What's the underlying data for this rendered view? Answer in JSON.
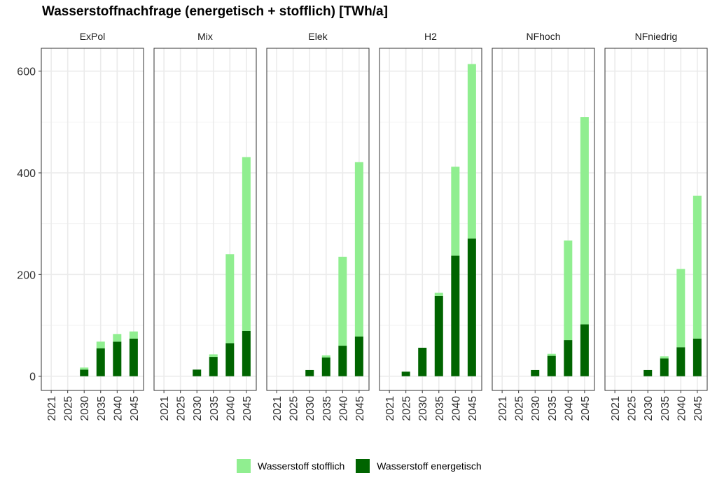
{
  "chart_data": {
    "type": "bar",
    "stacked": true,
    "title": "Wasserstoffnachfrage (energetisch + stofflich) [TWh/a]",
    "xlabel": "",
    "ylabel": "",
    "ylim": [
      -28,
      645
    ],
    "yticks": [
      0,
      200,
      400,
      600
    ],
    "categories": [
      "2021",
      "2025",
      "2030",
      "2035",
      "2040",
      "2045"
    ],
    "grid": true,
    "legend_position": "bottom",
    "panels": [
      {
        "name": "ExPol",
        "series": [
          {
            "name": "Wasserstoff energetisch",
            "values": [
              0,
              0,
              13,
              55,
              68,
              74
            ]
          },
          {
            "name": "Wasserstoff stofflich",
            "values": [
              0,
              0,
              4,
              13,
              15,
              14
            ]
          }
        ]
      },
      {
        "name": "Mix",
        "series": [
          {
            "name": "Wasserstoff energetisch",
            "values": [
              0,
              0,
              13,
              38,
              65,
              89
            ]
          },
          {
            "name": "Wasserstoff stofflich",
            "values": [
              0,
              0,
              0,
              5,
              175,
              342
            ]
          }
        ]
      },
      {
        "name": "Elek",
        "series": [
          {
            "name": "Wasserstoff energetisch",
            "values": [
              0,
              0,
              12,
              37,
              60,
              78
            ]
          },
          {
            "name": "Wasserstoff stofflich",
            "values": [
              0,
              0,
              0,
              4,
              175,
              343
            ]
          }
        ]
      },
      {
        "name": "H2",
        "series": [
          {
            "name": "Wasserstoff energetisch",
            "values": [
              0,
              9,
              56,
              158,
              237,
              271
            ]
          },
          {
            "name": "Wasserstoff stofflich",
            "values": [
              0,
              0,
              0,
              6,
              175,
              343
            ]
          }
        ]
      },
      {
        "name": "NFhoch",
        "series": [
          {
            "name": "Wasserstoff energetisch",
            "values": [
              0,
              0,
              12,
              40,
              71,
              102
            ]
          },
          {
            "name": "Wasserstoff stofflich",
            "values": [
              0,
              0,
              0,
              4,
              196,
              408
            ]
          }
        ]
      },
      {
        "name": "NFniedrig",
        "series": [
          {
            "name": "Wasserstoff energetisch",
            "values": [
              0,
              0,
              12,
              35,
              57,
              74
            ]
          },
          {
            "name": "Wasserstoff stofflich",
            "values": [
              0,
              0,
              0,
              4,
              154,
              281
            ]
          }
        ]
      }
    ],
    "colors": {
      "Wasserstoff energetisch": "#006400",
      "Wasserstoff stofflich": "#90ee90"
    },
    "legend": [
      "Wasserstoff stofflich",
      "Wasserstoff energetisch"
    ]
  }
}
